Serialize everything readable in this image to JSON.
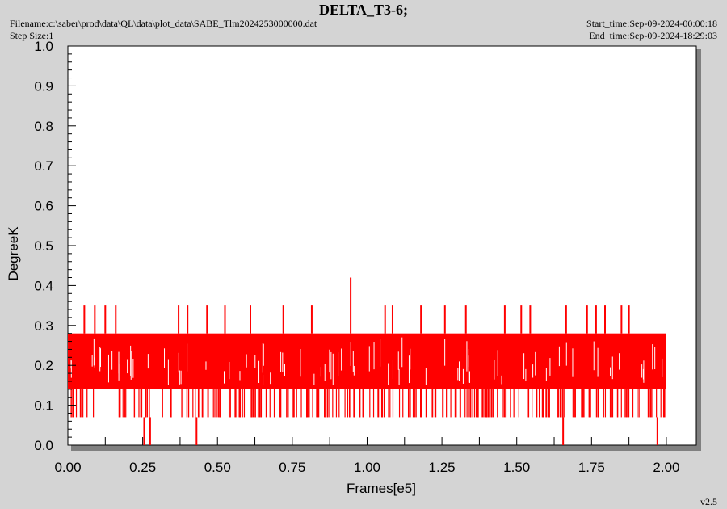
{
  "header": {
    "title": "DELTA_T3-6;",
    "filename": "Filename:c:\\saber\\prod\\data\\QL\\data\\plot_data\\SABE_Tlm2024253000000.dat",
    "step_size": "Step Size:1",
    "start_time": "Start_time:Sep-09-2024-00:00:18",
    "end_time": "End_time:Sep-09-2024-18:29:03",
    "version": "v2.5"
  },
  "chart_data": {
    "type": "line",
    "title": "DELTA_T3-6;",
    "xlabel": "Frames[e5]",
    "ylabel": "DegreeK",
    "xlim": [
      0.0,
      2.1
    ],
    "ylim": [
      0.0,
      1.0
    ],
    "x_ticks": [
      "0.00",
      "0.25",
      "0.50",
      "0.75",
      "1.00",
      "1.25",
      "1.50",
      "1.75",
      "2.00"
    ],
    "y_ticks": [
      "0.0",
      "0.1",
      "0.2",
      "0.3",
      "0.4",
      "0.5",
      "0.6",
      "0.7",
      "0.8",
      "0.9",
      "1.0"
    ],
    "grid": false,
    "legend": "none",
    "color": "#ff0000",
    "series": [
      {
        "x_range": [
          0.0,
          2.0
        ],
        "band_min": 0.14,
        "band_max": 0.28,
        "low_values": [
          0.07,
          0.0
        ],
        "spikes": [
          {
            "x": 0.055,
            "y": 0.35
          },
          {
            "x": 0.09,
            "y": 0.35
          },
          {
            "x": 0.125,
            "y": 0.35
          },
          {
            "x": 0.16,
            "y": 0.35
          },
          {
            "x": 0.37,
            "y": 0.35
          },
          {
            "x": 0.4,
            "y": 0.35
          },
          {
            "x": 0.465,
            "y": 0.35
          },
          {
            "x": 0.525,
            "y": 0.35
          },
          {
            "x": 0.61,
            "y": 0.35
          },
          {
            "x": 0.72,
            "y": 0.35
          },
          {
            "x": 0.815,
            "y": 0.35
          },
          {
            "x": 0.945,
            "y": 0.42
          },
          {
            "x": 1.06,
            "y": 0.35
          },
          {
            "x": 1.085,
            "y": 0.35
          },
          {
            "x": 1.18,
            "y": 0.35
          },
          {
            "x": 1.26,
            "y": 0.35
          },
          {
            "x": 1.33,
            "y": 0.35
          },
          {
            "x": 1.46,
            "y": 0.35
          },
          {
            "x": 1.515,
            "y": 0.35
          },
          {
            "x": 1.545,
            "y": 0.35
          },
          {
            "x": 1.665,
            "y": 0.35
          },
          {
            "x": 1.735,
            "y": 0.35
          },
          {
            "x": 1.765,
            "y": 0.35
          },
          {
            "x": 1.795,
            "y": 0.35
          },
          {
            "x": 1.85,
            "y": 0.35
          },
          {
            "x": 1.875,
            "y": 0.35
          }
        ],
        "dips": [
          {
            "x": 0.255,
            "y": 0.0
          },
          {
            "x": 0.275,
            "y": 0.0
          },
          {
            "x": 0.43,
            "y": 0.0
          },
          {
            "x": 1.655,
            "y": 0.0
          },
          {
            "x": 1.97,
            "y": 0.0
          }
        ]
      }
    ]
  }
}
